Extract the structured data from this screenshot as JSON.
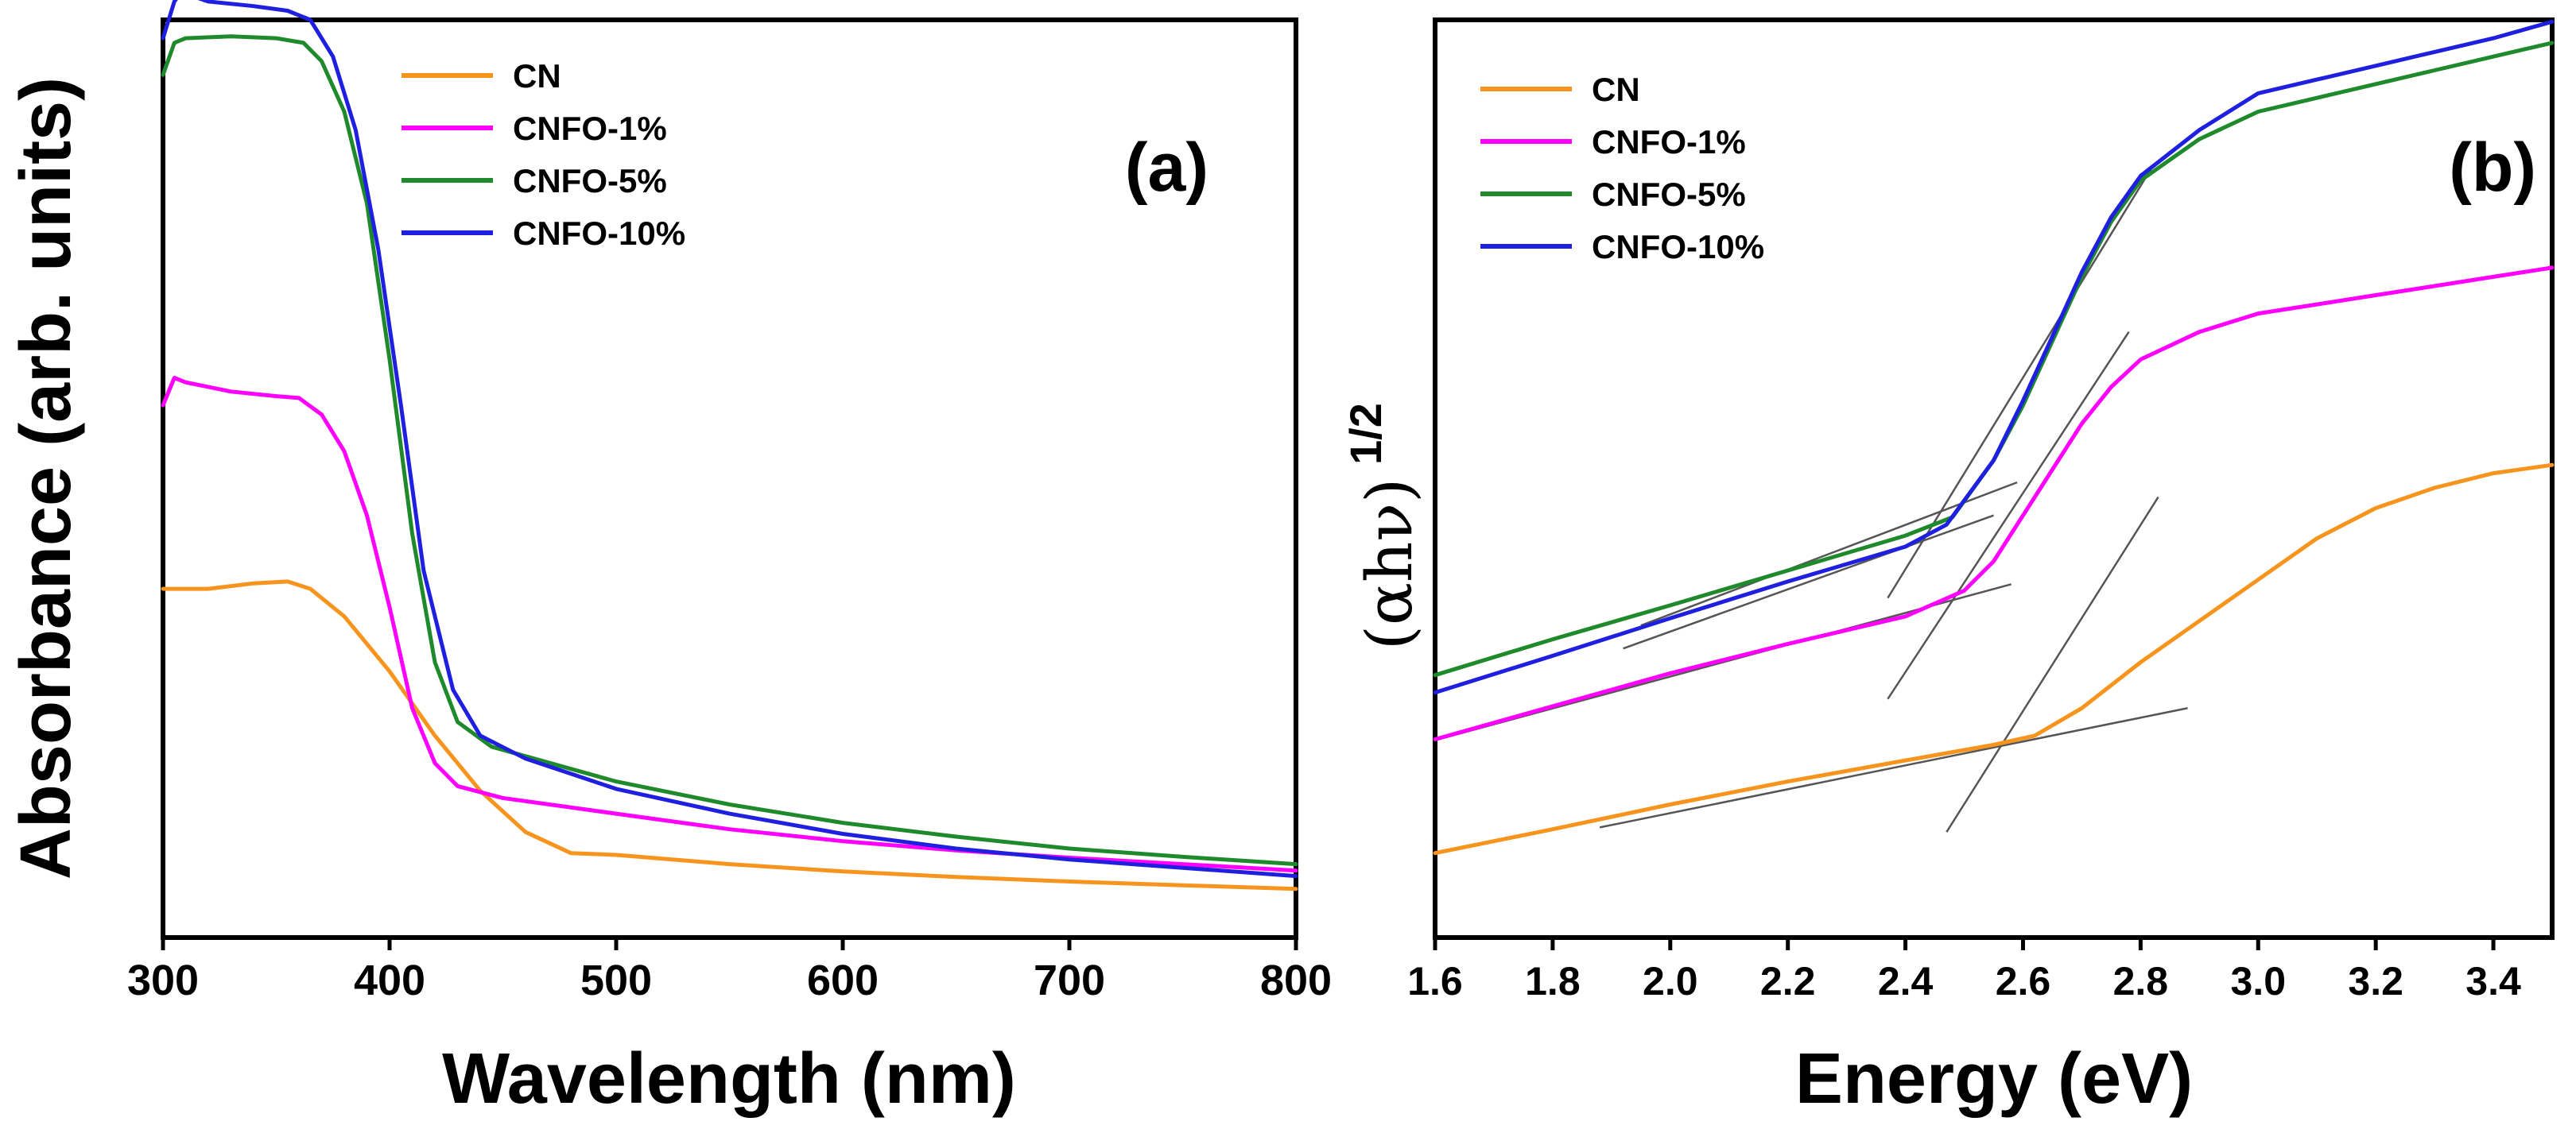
{
  "chart_data": [
    {
      "type": "line",
      "panel_label": "(a)",
      "title": "",
      "xlabel": "Wavelength (nm)",
      "ylabel": "Absorbance (arb. units)",
      "xlim": [
        300,
        800
      ],
      "ylim": [
        0,
        1
      ],
      "xticks": [
        300,
        400,
        500,
        600,
        700,
        800
      ],
      "x_tick_labels": [
        "300",
        "400",
        "500",
        "600",
        "700",
        "800"
      ],
      "y_tick_labels_shown": false,
      "legend": "top-center",
      "series": [
        {
          "name": "CN",
          "color": "#f7941d",
          "points": [
            [
              300,
              0.38
            ],
            [
              320,
              0.38
            ],
            [
              340,
              0.386
            ],
            [
              355,
              0.388
            ],
            [
              365,
              0.38
            ],
            [
              380,
              0.35
            ],
            [
              400,
              0.29
            ],
            [
              420,
              0.22
            ],
            [
              440,
              0.16
            ],
            [
              460,
              0.115
            ],
            [
              480,
              0.092
            ],
            [
              500,
              0.09
            ],
            [
              550,
              0.08
            ],
            [
              600,
              0.072
            ],
            [
              650,
              0.066
            ],
            [
              700,
              0.061
            ],
            [
              750,
              0.057
            ],
            [
              800,
              0.053
            ]
          ]
        },
        {
          "name": "CNFO-1%",
          "color": "#ff00ff",
          "points": [
            [
              300,
              0.58
            ],
            [
              305,
              0.61
            ],
            [
              310,
              0.605
            ],
            [
              330,
              0.595
            ],
            [
              350,
              0.59
            ],
            [
              360,
              0.588
            ],
            [
              370,
              0.57
            ],
            [
              380,
              0.53
            ],
            [
              390,
              0.46
            ],
            [
              400,
              0.36
            ],
            [
              410,
              0.25
            ],
            [
              420,
              0.19
            ],
            [
              430,
              0.165
            ],
            [
              450,
              0.152
            ],
            [
              500,
              0.135
            ],
            [
              550,
              0.118
            ],
            [
              600,
              0.105
            ],
            [
              650,
              0.095
            ],
            [
              700,
              0.087
            ],
            [
              750,
              0.08
            ],
            [
              800,
              0.073
            ]
          ]
        },
        {
          "name": "CNFO-5%",
          "color": "#1f8a2c",
          "points": [
            [
              300,
              0.94
            ],
            [
              305,
              0.975
            ],
            [
              310,
              0.98
            ],
            [
              330,
              0.982
            ],
            [
              350,
              0.98
            ],
            [
              362,
              0.975
            ],
            [
              370,
              0.955
            ],
            [
              380,
              0.9
            ],
            [
              390,
              0.8
            ],
            [
              400,
              0.63
            ],
            [
              410,
              0.44
            ],
            [
              420,
              0.3
            ],
            [
              430,
              0.235
            ],
            [
              445,
              0.208
            ],
            [
              500,
              0.17
            ],
            [
              550,
              0.145
            ],
            [
              600,
              0.125
            ],
            [
              650,
              0.11
            ],
            [
              700,
              0.097
            ],
            [
              750,
              0.088
            ],
            [
              800,
              0.08
            ]
          ]
        },
        {
          "name": "CNFO-10%",
          "color": "#1f1fe0",
          "points": [
            [
              300,
              0.98
            ],
            [
              305,
              1.02
            ],
            [
              308,
              1.03
            ],
            [
              320,
              1.02
            ],
            [
              340,
              1.015
            ],
            [
              355,
              1.01
            ],
            [
              365,
              1.0
            ],
            [
              375,
              0.96
            ],
            [
              385,
              0.88
            ],
            [
              395,
              0.75
            ],
            [
              405,
              0.58
            ],
            [
              415,
              0.4
            ],
            [
              428,
              0.27
            ],
            [
              440,
              0.22
            ],
            [
              460,
              0.195
            ],
            [
              500,
              0.162
            ],
            [
              550,
              0.135
            ],
            [
              600,
              0.113
            ],
            [
              650,
              0.097
            ],
            [
              700,
              0.085
            ],
            [
              750,
              0.076
            ],
            [
              800,
              0.067
            ]
          ]
        }
      ]
    },
    {
      "type": "line",
      "panel_label": "(b)",
      "title": "",
      "xlabel": "Energy (eV)",
      "ylabel_main": "(αhν)",
      "ylabel_sup": "1/2",
      "xlim": [
        1.6,
        3.5
      ],
      "ylim": [
        0,
        1
      ],
      "xticks": [
        1.6,
        1.8,
        2.0,
        2.2,
        2.4,
        2.6,
        2.8,
        3.0,
        3.2,
        3.4
      ],
      "x_tick_labels": [
        "1.6",
        "1.8",
        "2.0",
        "2.2",
        "2.4",
        "2.6",
        "2.8",
        "3.0",
        "3.2",
        "3.4"
      ],
      "y_tick_labels_shown": false,
      "legend": "top-left",
      "series": [
        {
          "name": "CN",
          "color": "#f7941d",
          "points": [
            [
              1.6,
              0.092
            ],
            [
              1.8,
              0.118
            ],
            [
              2.0,
              0.145
            ],
            [
              2.2,
              0.17
            ],
            [
              2.4,
              0.193
            ],
            [
              2.55,
              0.21
            ],
            [
              2.62,
              0.22
            ],
            [
              2.7,
              0.25
            ],
            [
              2.8,
              0.3
            ],
            [
              2.9,
              0.345
            ],
            [
              3.0,
              0.39
            ],
            [
              3.1,
              0.435
            ],
            [
              3.2,
              0.468
            ],
            [
              3.3,
              0.49
            ],
            [
              3.4,
              0.506
            ],
            [
              3.5,
              0.515
            ]
          ]
        },
        {
          "name": "CNFO-1%",
          "color": "#ff00ff",
          "points": [
            [
              1.6,
              0.216
            ],
            [
              1.8,
              0.252
            ],
            [
              2.0,
              0.288
            ],
            [
              2.2,
              0.32
            ],
            [
              2.4,
              0.35
            ],
            [
              2.5,
              0.378
            ],
            [
              2.55,
              0.41
            ],
            [
              2.6,
              0.46
            ],
            [
              2.65,
              0.51
            ],
            [
              2.7,
              0.56
            ],
            [
              2.75,
              0.6
            ],
            [
              2.8,
              0.63
            ],
            [
              2.9,
              0.66
            ],
            [
              3.0,
              0.68
            ],
            [
              3.1,
              0.69
            ],
            [
              3.2,
              0.7
            ],
            [
              3.3,
              0.71
            ],
            [
              3.4,
              0.72
            ],
            [
              3.5,
              0.73
            ]
          ]
        },
        {
          "name": "CNFO-5%",
          "color": "#1f8a2c",
          "points": [
            [
              1.6,
              0.286
            ],
            [
              1.8,
              0.325
            ],
            [
              2.0,
              0.362
            ],
            [
              2.2,
              0.4
            ],
            [
              2.4,
              0.438
            ],
            [
              2.48,
              0.458
            ],
            [
              2.55,
              0.52
            ],
            [
              2.6,
              0.58
            ],
            [
              2.65,
              0.65
            ],
            [
              2.7,
              0.72
            ],
            [
              2.75,
              0.78
            ],
            [
              2.8,
              0.825
            ],
            [
              2.9,
              0.87
            ],
            [
              3.0,
              0.9
            ],
            [
              3.1,
              0.915
            ],
            [
              3.2,
              0.93
            ],
            [
              3.3,
              0.945
            ],
            [
              3.4,
              0.96
            ],
            [
              3.5,
              0.975
            ]
          ]
        },
        {
          "name": "CNFO-10%",
          "color": "#1f1fe0",
          "points": [
            [
              1.6,
              0.267
            ],
            [
              1.8,
              0.307
            ],
            [
              2.0,
              0.348
            ],
            [
              2.2,
              0.388
            ],
            [
              2.4,
              0.426
            ],
            [
              2.47,
              0.45
            ],
            [
              2.55,
              0.52
            ],
            [
              2.6,
              0.585
            ],
            [
              2.65,
              0.655
            ],
            [
              2.7,
              0.725
            ],
            [
              2.75,
              0.785
            ],
            [
              2.8,
              0.83
            ],
            [
              2.9,
              0.88
            ],
            [
              3.0,
              0.92
            ],
            [
              3.1,
              0.935
            ],
            [
              3.2,
              0.95
            ],
            [
              3.3,
              0.965
            ],
            [
              3.4,
              0.98
            ],
            [
              3.5,
              0.998
            ]
          ]
        }
      ],
      "tangent_lines": [
        [
          [
            1.88,
            0.12
          ],
          [
            2.88,
            0.25
          ]
        ],
        [
          [
            2.47,
            0.115
          ],
          [
            2.83,
            0.48
          ]
        ],
        [
          [
            1.6,
            0.215
          ],
          [
            2.58,
            0.385
          ]
        ],
        [
          [
            2.37,
            0.26
          ],
          [
            2.78,
            0.66
          ]
        ],
        [
          [
            1.92,
            0.315
          ],
          [
            2.55,
            0.46
          ]
        ],
        [
          [
            1.95,
            0.34
          ],
          [
            2.59,
            0.496
          ]
        ],
        [
          [
            2.37,
            0.37
          ],
          [
            2.82,
            0.84
          ]
        ]
      ]
    }
  ]
}
